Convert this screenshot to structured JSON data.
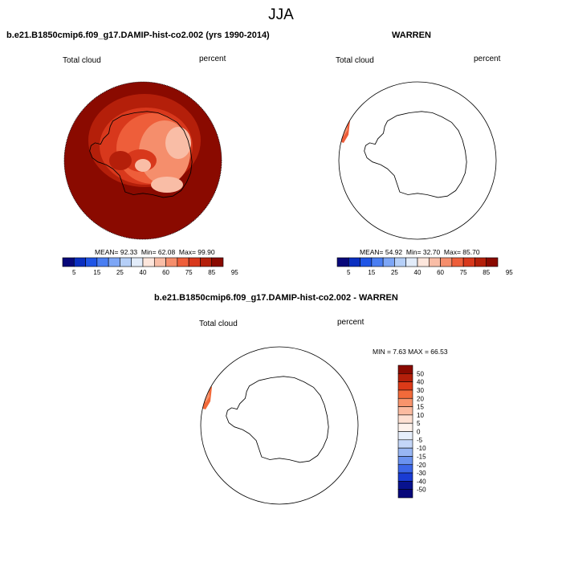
{
  "title": "JJA",
  "panels": [
    {
      "title": "b.e21.B1850cmip6.f09_g17.DAMIP-hist-co2.002 (yrs 1990-2014)",
      "variable": "Total cloud",
      "units": "percent",
      "stats": {
        "mean": "MEAN=  92.33",
        "min": "Min=  62.08",
        "max": "Max=  99.90"
      },
      "colorbar_labels": [
        "5",
        "15",
        "25",
        "40",
        "60",
        "75",
        "85",
        "95"
      ]
    },
    {
      "title": "WARREN",
      "variable": "Total cloud",
      "units": "percent",
      "stats": {
        "mean": "MEAN=  54.92",
        "min": "Min=  32.70",
        "max": "Max=  85.70"
      },
      "colorbar_labels": [
        "5",
        "15",
        "25",
        "40",
        "60",
        "75",
        "85",
        "95"
      ]
    },
    {
      "title": "b.e21.B1850cmip6.f09_g17.DAMIP-hist-co2.002 - WARREN",
      "variable": "Total cloud",
      "units": "percent",
      "minmax": "MIN =  7.63 MAX =  66.53",
      "colorbar_labels": [
        "50",
        "40",
        "30",
        "20",
        "15",
        "10",
        "5",
        "0",
        "-5",
        "-10",
        "-15",
        "-20",
        "-30",
        "-40",
        "-50"
      ]
    }
  ],
  "colors": {
    "seq": [
      "#08087a",
      "#0a2fc0",
      "#1f55e6",
      "#4a7ef2",
      "#7da6f6",
      "#b5cff8",
      "#e2ecfa",
      "#fde6dc",
      "#f9bda6",
      "#f58e6c",
      "#ee5e3a",
      "#d8381c",
      "#b41f0a",
      "#8a0a00"
    ],
    "diff": [
      "#8a0a00",
      "#b41f0a",
      "#dc3a18",
      "#f26a3a",
      "#f8946c",
      "#fbbba0",
      "#fde0d2",
      "#fdf2ec",
      "#e6eefb",
      "#c4d6f8",
      "#98b6f4",
      "#6a92f0",
      "#3c66e8",
      "#1a3cd4",
      "#08128e"
    ]
  }
}
